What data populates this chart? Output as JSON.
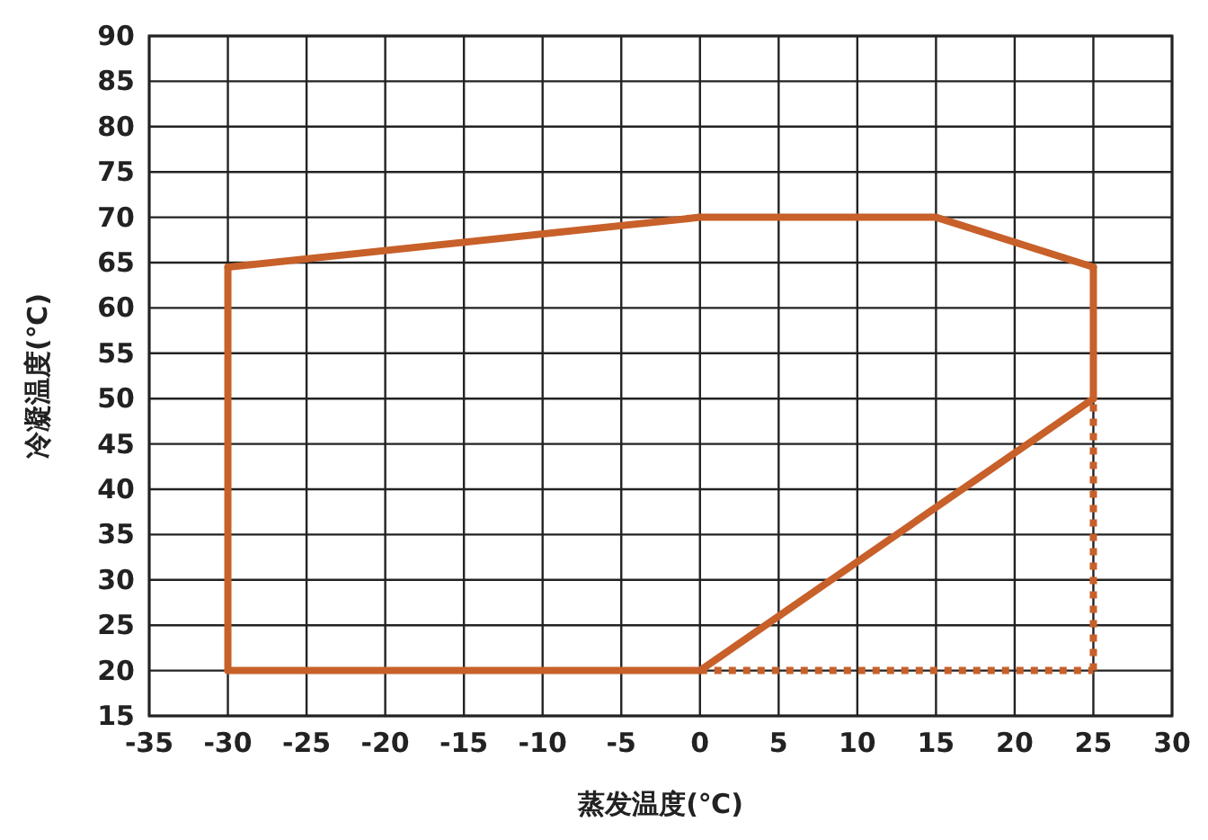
{
  "chart_data": {
    "type": "line",
    "xlabel": "蒸发温度(℃)",
    "ylabel": "冷凝温度(℃)",
    "xlim": [
      -35,
      30
    ],
    "xticks": [
      -35,
      -30,
      -25,
      -20,
      -15,
      -10,
      -5,
      0,
      5,
      10,
      15,
      20,
      25,
      30
    ],
    "ylim": [
      15,
      90
    ],
    "yticks": [
      15,
      20,
      25,
      30,
      35,
      40,
      45,
      50,
      55,
      60,
      65,
      70,
      75,
      80,
      85,
      90
    ],
    "grid": true,
    "series": [
      {
        "color": "#c8602a",
        "line_style": "solid",
        "x": [
          -30,
          0,
          25
        ],
        "values": [
          20,
          20,
          50
        ]
      },
      {
        "color": "#c8602a",
        "line_style": "solid",
        "x": [
          -30,
          0,
          15,
          25
        ],
        "values": [
          64.5,
          70,
          70,
          64.5
        ]
      },
      {
        "color": "#c8602a",
        "line_style": "solid",
        "x": [
          -30,
          -30
        ],
        "values": [
          20,
          64.5
        ]
      },
      {
        "color": "#c8602a",
        "line_style": "solid",
        "x": [
          25,
          25
        ],
        "values": [
          50,
          64.5
        ]
      },
      {
        "color": "#c8602a",
        "line_style": "dotted",
        "x": [
          0,
          25
        ],
        "values": [
          20,
          20
        ]
      },
      {
        "color": "#c8602a",
        "line_style": "dotted",
        "x": [
          25,
          25
        ],
        "values": [
          20,
          50
        ]
      }
    ]
  }
}
